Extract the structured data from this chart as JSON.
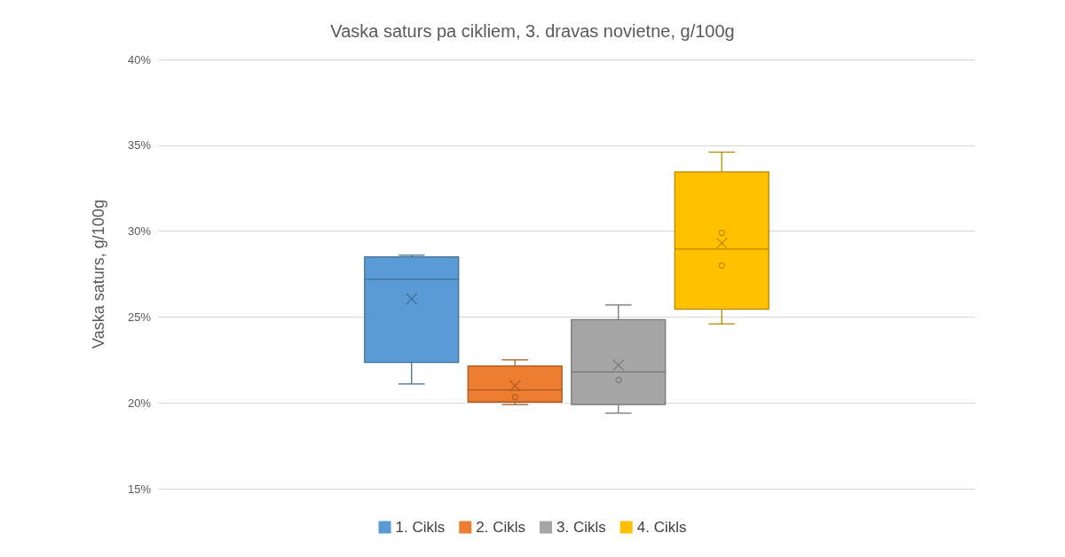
{
  "chart_data": {
    "type": "box",
    "title": "Vaska saturs pa cikliem, 3. dravas novietne, g/100g",
    "ylabel": "Vaska saturs, g/100g",
    "categories": [
      null
    ],
    "series": [
      {
        "name": "1. Cikls",
        "color": "#5b9bd5",
        "boxes": [
          {
            "low": 21.1,
            "q1": 22.35,
            "median": 27.2,
            "q3": 28.5,
            "high": 28.6,
            "mean": 26.05
          }
        ]
      },
      {
        "name": "2. Cikls",
        "color": "#ed7d31",
        "boxes": [
          {
            "low": 19.9,
            "q1": 20.05,
            "median": 20.75,
            "q3": 22.15,
            "high": 22.5,
            "mean": 21.0,
            "outliers": [
              20.4
            ]
          }
        ]
      },
      {
        "name": "3. Cikls",
        "color": "#a5a5a5",
        "boxes": [
          {
            "low": 19.4,
            "q1": 19.9,
            "median": 21.8,
            "q3": 24.85,
            "high": 25.7,
            "mean": 22.2,
            "outliers": [
              21.4
            ]
          }
        ]
      },
      {
        "name": "4. Cikls",
        "color": "#ffc000",
        "boxes": [
          {
            "low": 24.6,
            "q1": 25.45,
            "median": 28.95,
            "q3": 33.45,
            "high": 34.6,
            "mean": 29.3,
            "outliers": [
              29.9,
              28.0
            ]
          }
        ]
      }
    ],
    "ylim": [
      15,
      40
    ],
    "yticks": [
      {
        "value": 15,
        "label": "15%"
      },
      {
        "value": 20,
        "label": "20%"
      },
      {
        "value": 25,
        "label": "25%"
      },
      {
        "value": 30,
        "label": "30%"
      },
      {
        "value": 35,
        "label": "35%"
      },
      {
        "value": 40,
        "label": "40%"
      }
    ],
    "grid": "y",
    "legend": "bottom"
  }
}
